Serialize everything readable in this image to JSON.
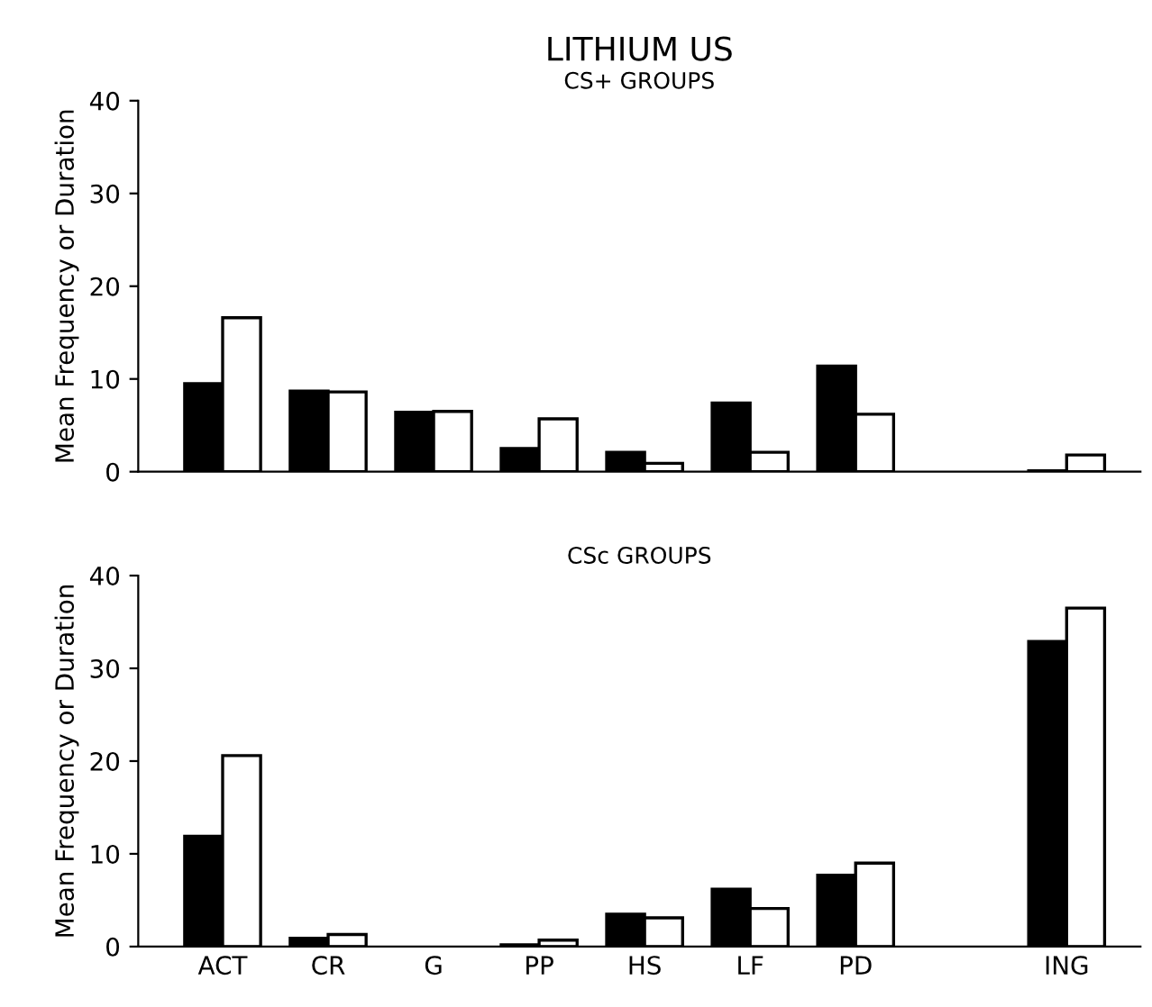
{
  "chart_data": [
    {
      "type": "bar",
      "title": "LITHIUM US",
      "subtitle": "CS+ GROUPS",
      "ylabel": "Mean Frequency or Duration",
      "categories": [
        null,
        null,
        null,
        null,
        null,
        null,
        null,
        null,
        null
      ],
      "series": [
        {
          "color": "#000000",
          "values": [
            9.5,
            8.7,
            6.4,
            2.5,
            2.1,
            7.4,
            11.4,
            null,
            0.1
          ]
        },
        {
          "color": "#ffffff",
          "values": [
            16.6,
            8.6,
            6.5,
            5.7,
            0.9,
            2.1,
            6.2,
            null,
            1.8
          ]
        }
      ],
      "ylim": [
        0,
        40
      ],
      "yticks": [
        0,
        10,
        20,
        30,
        40
      ],
      "grid": false,
      "legend": false,
      "tick_labels": "y"
    },
    {
      "type": "bar",
      "subtitle": "CSc GROUPS",
      "ylabel": "Mean Frequency or Duration",
      "categories": [
        "ACT",
        "CR",
        "G",
        "PP",
        "HS",
        "LF",
        "PD",
        null,
        "ING"
      ],
      "series": [
        {
          "color": "#000000",
          "values": [
            11.9,
            0.9,
            null,
            0.2,
            3.5,
            6.2,
            7.7,
            null,
            32.9
          ]
        },
        {
          "color": "#ffffff",
          "values": [
            20.6,
            1.3,
            null,
            0.7,
            3.1,
            4.1,
            9.0,
            null,
            36.5
          ]
        }
      ],
      "ylim": [
        0,
        40
      ],
      "yticks": [
        0,
        10,
        20,
        30,
        40
      ],
      "grid": false,
      "legend": false
    }
  ]
}
